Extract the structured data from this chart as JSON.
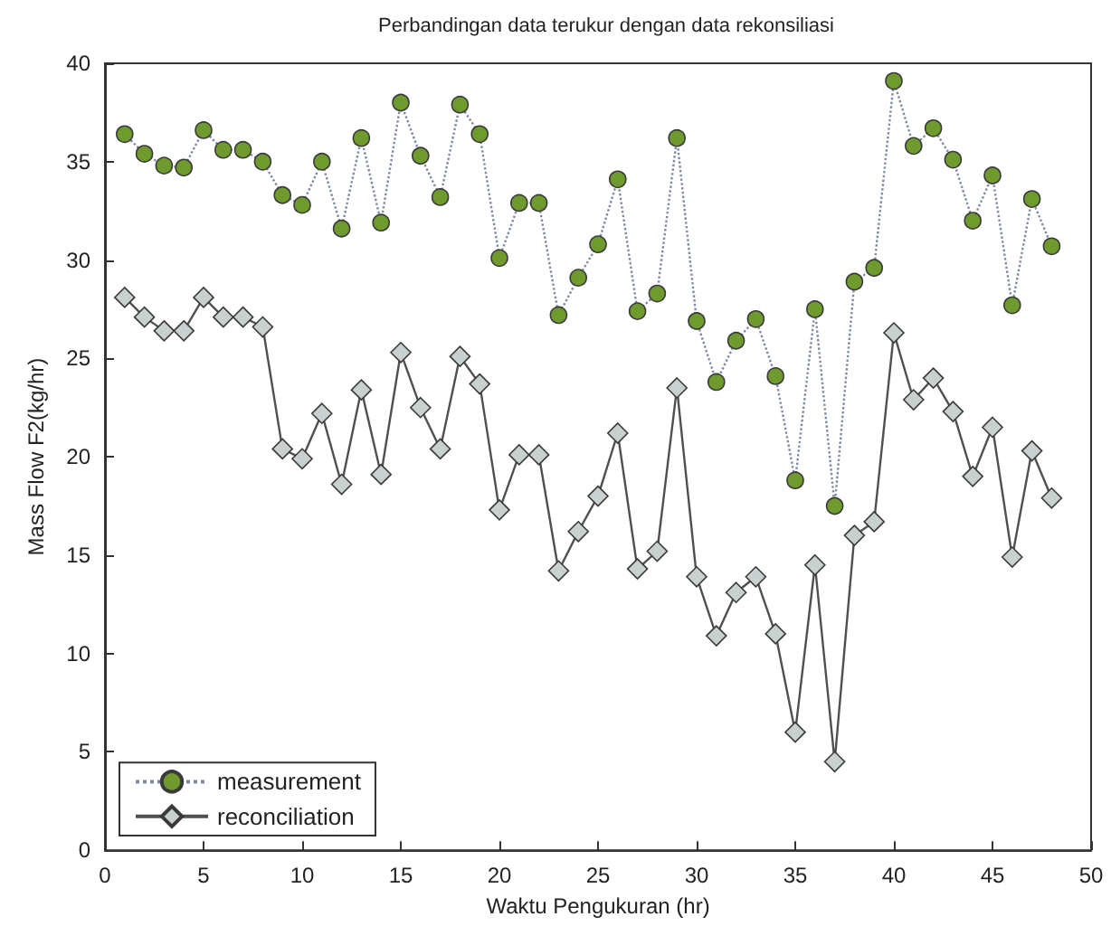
{
  "chart_data": {
    "type": "line",
    "title": "Perbandingan data terukur dengan data rekonsiliasi",
    "xlabel": "Waktu Pengukuran (hr)",
    "ylabel": "Mass Flow F2(kg/hr)",
    "x": [
      1,
      2,
      3,
      4,
      5,
      6,
      7,
      8,
      9,
      10,
      11,
      12,
      13,
      14,
      15,
      16,
      17,
      18,
      19,
      20,
      21,
      22,
      23,
      24,
      25,
      26,
      27,
      28,
      29,
      30,
      31,
      32,
      33,
      34,
      35,
      36,
      37,
      38,
      39,
      40,
      41,
      42,
      43,
      44,
      45,
      46,
      47,
      48
    ],
    "series": [
      {
        "name": "measurement",
        "color": "#6f9a2e",
        "line_style": "dotted",
        "marker": "circle",
        "values": [
          36.4,
          35.4,
          34.8,
          34.7,
          36.6,
          35.6,
          35.6,
          35.0,
          33.3,
          32.8,
          35.0,
          31.6,
          36.2,
          31.9,
          38.0,
          35.3,
          33.2,
          37.9,
          36.4,
          30.1,
          32.9,
          32.9,
          27.2,
          29.1,
          30.8,
          34.1,
          27.4,
          28.3,
          36.2,
          26.9,
          23.8,
          25.9,
          27.0,
          24.1,
          18.8,
          27.5,
          17.5,
          28.9,
          29.6,
          39.1,
          35.8,
          36.7,
          35.1,
          32.0,
          34.3,
          27.7,
          33.1,
          30.7
        ]
      },
      {
        "name": "reconciliation",
        "color": "#c8d0d0",
        "line_style": "solid",
        "marker": "diamond",
        "values": [
          28.1,
          27.1,
          26.4,
          26.4,
          28.1,
          27.1,
          27.1,
          26.6,
          20.4,
          19.9,
          22.2,
          18.6,
          23.4,
          19.1,
          25.3,
          22.5,
          20.4,
          25.1,
          23.7,
          17.3,
          20.1,
          20.1,
          14.2,
          16.2,
          18.0,
          21.2,
          14.3,
          15.2,
          23.5,
          13.9,
          10.9,
          13.1,
          13.9,
          11.0,
          6.0,
          14.5,
          4.5,
          16.0,
          16.7,
          26.3,
          22.9,
          24.0,
          22.3,
          19.0,
          21.5,
          14.9,
          20.3,
          17.9
        ]
      }
    ],
    "xlim": [
      0,
      50
    ],
    "xticks": [
      0,
      5,
      10,
      15,
      20,
      25,
      30,
      35,
      40,
      45,
      50
    ],
    "ylim": [
      0,
      40
    ],
    "yticks": [
      0,
      5,
      10,
      15,
      20,
      25,
      30,
      35,
      40
    ],
    "grid": false,
    "legend": "bottom left"
  }
}
